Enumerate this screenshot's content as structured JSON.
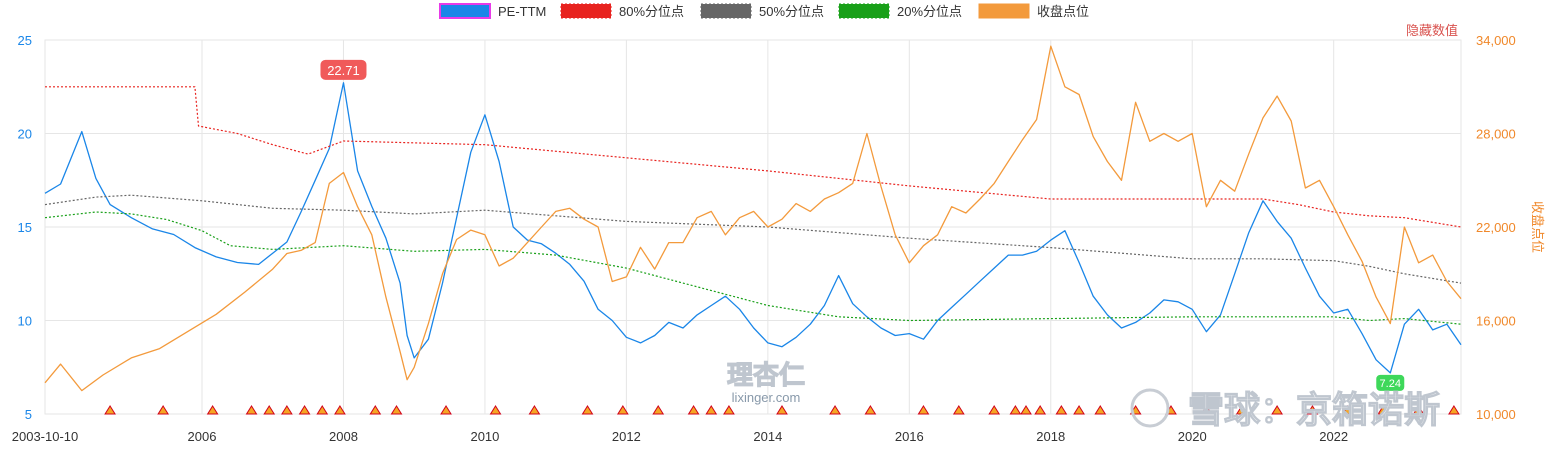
{
  "chart_data": {
    "type": "line",
    "title": "",
    "legend": {
      "placement": "top-center",
      "items": [
        {
          "label": "PE-TTM",
          "color": "#1a86e8",
          "style": "solid"
        },
        {
          "label": "80%分位点",
          "color": "#e8231f",
          "style": "dotted"
        },
        {
          "label": "50%分位点",
          "color": "#666666",
          "style": "dotted"
        },
        {
          "label": "20%分位点",
          "color": "#19a019",
          "style": "dotted"
        },
        {
          "label": "收盘点位",
          "color": "#f39a3c",
          "style": "solid"
        }
      ]
    },
    "hidden_value_label": "隐藏数值",
    "left_axis": {
      "ticks": [
        "5",
        "10",
        "15",
        "20",
        "25"
      ],
      "ylim": [
        5,
        25
      ],
      "color": "#1a86e8"
    },
    "right_axis": {
      "title": "收盘点位",
      "ticks": [
        "10,000",
        "16,000",
        "22,000",
        "28,000",
        "34,000"
      ],
      "ylim": [
        10000,
        34000
      ],
      "color": "#f0882a"
    },
    "x_axis": {
      "ticks": [
        "2003-10-10",
        "2006",
        "2008",
        "2010",
        "2012",
        "2014",
        "2016",
        "2018",
        "2020",
        "2022"
      ],
      "xlim": [
        2003.78,
        2023.8
      ]
    },
    "grid": true,
    "series": [
      {
        "name": "PE-TTM",
        "axis": "left",
        "color": "#1a86e8",
        "x": [
          2003.78,
          2004.0,
          2004.3,
          2004.5,
          2004.7,
          2005.0,
          2005.3,
          2005.6,
          2005.9,
          2006.2,
          2006.5,
          2006.8,
          2007.0,
          2007.2,
          2007.4,
          2007.6,
          2007.8,
          2008.0,
          2008.2,
          2008.4,
          2008.6,
          2008.8,
          2008.9,
          2009.0,
          2009.2,
          2009.4,
          2009.6,
          2009.8,
          2010.0,
          2010.2,
          2010.4,
          2010.6,
          2010.8,
          2011.0,
          2011.2,
          2011.4,
          2011.6,
          2011.8,
          2012.0,
          2012.2,
          2012.4,
          2012.6,
          2012.8,
          2013.0,
          2013.2,
          2013.4,
          2013.6,
          2013.8,
          2014.0,
          2014.2,
          2014.4,
          2014.6,
          2014.8,
          2015.0,
          2015.2,
          2015.4,
          2015.6,
          2015.8,
          2016.0,
          2016.2,
          2016.4,
          2016.6,
          2016.8,
          2017.0,
          2017.2,
          2017.4,
          2017.6,
          2017.8,
          2018.0,
          2018.2,
          2018.4,
          2018.6,
          2018.8,
          2019.0,
          2019.2,
          2019.4,
          2019.6,
          2019.8,
          2020.0,
          2020.2,
          2020.4,
          2020.6,
          2020.8,
          2021.0,
          2021.2,
          2021.4,
          2021.6,
          2021.8,
          2022.0,
          2022.2,
          2022.4,
          2022.6,
          2022.8,
          2023.0,
          2023.2,
          2023.4,
          2023.6,
          2023.8
        ],
        "y": [
          16.8,
          17.3,
          20.1,
          17.6,
          16.2,
          15.5,
          14.9,
          14.6,
          13.9,
          13.4,
          13.1,
          13.0,
          13.6,
          14.2,
          15.8,
          17.5,
          19.2,
          22.71,
          18.0,
          16.1,
          14.4,
          12.0,
          9.2,
          8.0,
          9.0,
          12.0,
          15.5,
          19.0,
          21.0,
          18.5,
          15.0,
          14.3,
          14.1,
          13.6,
          13.0,
          12.1,
          10.6,
          10.0,
          9.1,
          8.8,
          9.2,
          9.9,
          9.6,
          10.3,
          10.8,
          11.3,
          10.6,
          9.6,
          8.8,
          8.6,
          9.1,
          9.8,
          10.8,
          12.4,
          10.9,
          10.2,
          9.6,
          9.2,
          9.3,
          9.0,
          10.0,
          10.7,
          11.4,
          12.1,
          12.8,
          13.5,
          13.5,
          13.7,
          14.3,
          14.8,
          13.1,
          11.3,
          10.3,
          9.6,
          9.9,
          10.4,
          11.1,
          11.0,
          10.6,
          9.4,
          10.3,
          12.5,
          14.7,
          16.4,
          15.3,
          14.4,
          12.8,
          11.3,
          10.4,
          10.6,
          9.3,
          7.9,
          7.2,
          9.8,
          10.6,
          9.5,
          9.8,
          8.7
        ]
      },
      {
        "name": "80%分位点",
        "axis": "left",
        "color": "#e8231f",
        "x": [
          2003.78,
          2005.9,
          2005.95,
          2006.5,
          2007.0,
          2007.5,
          2008.0,
          2010.0,
          2012.0,
          2014.0,
          2016.0,
          2018.0,
          2020.0,
          2021.0,
          2021.5,
          2022.0,
          2022.5,
          2023.0,
          2023.8
        ],
        "y": [
          22.5,
          22.5,
          20.4,
          20.0,
          19.4,
          18.9,
          19.6,
          19.4,
          18.7,
          18.0,
          17.2,
          16.5,
          16.5,
          16.5,
          16.2,
          15.8,
          15.6,
          15.5,
          15.0
        ]
      },
      {
        "name": "50%分位点",
        "axis": "left",
        "color": "#666666",
        "x": [
          2003.78,
          2004.5,
          2005.0,
          2006.0,
          2007.0,
          2008.0,
          2009.0,
          2010.0,
          2011.0,
          2012.0,
          2014.0,
          2016.0,
          2018.0,
          2020.0,
          2021.0,
          2022.0,
          2022.5,
          2023.0,
          2023.8
        ],
        "y": [
          16.2,
          16.6,
          16.7,
          16.4,
          16.0,
          15.9,
          15.7,
          15.9,
          15.6,
          15.3,
          15.0,
          14.4,
          13.9,
          13.3,
          13.3,
          13.2,
          12.9,
          12.5,
          12.0
        ]
      },
      {
        "name": "20%分位点",
        "axis": "left",
        "color": "#19a019",
        "x": [
          2003.78,
          2004.5,
          2005.0,
          2005.5,
          2006.0,
          2006.4,
          2007.0,
          2008.0,
          2009.0,
          2010.0,
          2011.0,
          2012.0,
          2013.0,
          2014.0,
          2015.0,
          2016.0,
          2018.0,
          2020.0,
          2022.0,
          2022.5,
          2023.0,
          2023.8
        ],
        "y": [
          15.5,
          15.8,
          15.7,
          15.4,
          14.8,
          14.0,
          13.8,
          14.0,
          13.7,
          13.8,
          13.5,
          12.8,
          11.8,
          10.8,
          10.2,
          10.0,
          10.1,
          10.2,
          10.2,
          10.0,
          10.1,
          9.8
        ]
      },
      {
        "name": "收盘点位",
        "axis": "right",
        "color": "#f39a3c",
        "x": [
          2003.78,
          2004.0,
          2004.3,
          2004.6,
          2005.0,
          2005.4,
          2005.8,
          2006.2,
          2006.6,
          2007.0,
          2007.2,
          2007.4,
          2007.6,
          2007.8,
          2008.0,
          2008.2,
          2008.4,
          2008.6,
          2008.8,
          2008.9,
          2009.0,
          2009.2,
          2009.4,
          2009.6,
          2009.8,
          2010.0,
          2010.2,
          2010.4,
          2010.6,
          2010.8,
          2011.0,
          2011.2,
          2011.4,
          2011.6,
          2011.8,
          2012.0,
          2012.2,
          2012.4,
          2012.6,
          2012.8,
          2013.0,
          2013.2,
          2013.4,
          2013.6,
          2013.8,
          2014.0,
          2014.2,
          2014.4,
          2014.6,
          2014.8,
          2015.0,
          2015.2,
          2015.4,
          2015.6,
          2015.8,
          2016.0,
          2016.2,
          2016.4,
          2016.6,
          2016.8,
          2017.0,
          2017.2,
          2017.4,
          2017.6,
          2017.8,
          2018.0,
          2018.2,
          2018.4,
          2018.6,
          2018.8,
          2019.0,
          2019.2,
          2019.4,
          2019.6,
          2019.8,
          2020.0,
          2020.2,
          2020.4,
          2020.6,
          2020.8,
          2021.0,
          2021.2,
          2021.4,
          2021.6,
          2021.8,
          2022.0,
          2022.2,
          2022.4,
          2022.6,
          2022.8,
          2023.0,
          2023.2,
          2023.4,
          2023.6,
          2023.8
        ],
        "y": [
          12000,
          13200,
          11500,
          12500,
          13600,
          14200,
          15300,
          16400,
          17800,
          19300,
          20300,
          20500,
          21000,
          24800,
          25500,
          23300,
          21500,
          17500,
          14000,
          12200,
          13000,
          15800,
          19000,
          21200,
          21800,
          21500,
          19500,
          20000,
          21000,
          22000,
          23000,
          23200,
          22500,
          22000,
          18500,
          18800,
          20700,
          19300,
          21000,
          21000,
          22600,
          23000,
          21500,
          22600,
          23000,
          22000,
          22500,
          23500,
          23000,
          23800,
          24200,
          24800,
          28000,
          24600,
          21500,
          19700,
          20800,
          21500,
          23300,
          22900,
          23800,
          24800,
          26200,
          27600,
          28900,
          33600,
          31000,
          30500,
          27800,
          26200,
          25000,
          30000,
          27500,
          28000,
          27500,
          28000,
          23300,
          25000,
          24300,
          26700,
          29000,
          30400,
          28800,
          24500,
          25000,
          23300,
          21500,
          19800,
          17500,
          15800,
          22000,
          19700,
          20200,
          18500,
          17400
        ]
      }
    ],
    "max_label": "22.71",
    "markers": {
      "x": [
        2004.7,
        2005.45,
        2006.15,
        2006.7,
        2006.95,
        2007.2,
        2007.45,
        2007.7,
        2007.95,
        2008.45,
        2008.75,
        2009.45,
        2010.15,
        2010.7,
        2011.45,
        2011.95,
        2012.45,
        2012.95,
        2013.2,
        2013.45,
        2014.2,
        2014.95,
        2015.45,
        2016.2,
        2016.7,
        2017.2,
        2017.5,
        2017.65,
        2017.85,
        2018.15,
        2018.4,
        2018.7,
        2019.2,
        2019.7,
        2020.2,
        2020.7,
        2021.2,
        2021.7,
        2022.2,
        2022.7,
        2023.2,
        2023.7
      ]
    },
    "watermark": "lixinger.com",
    "watermark_logo": "理杏仁",
    "overlay_text": "雪球：京箱诺斯",
    "low_badge": "7.24"
  }
}
